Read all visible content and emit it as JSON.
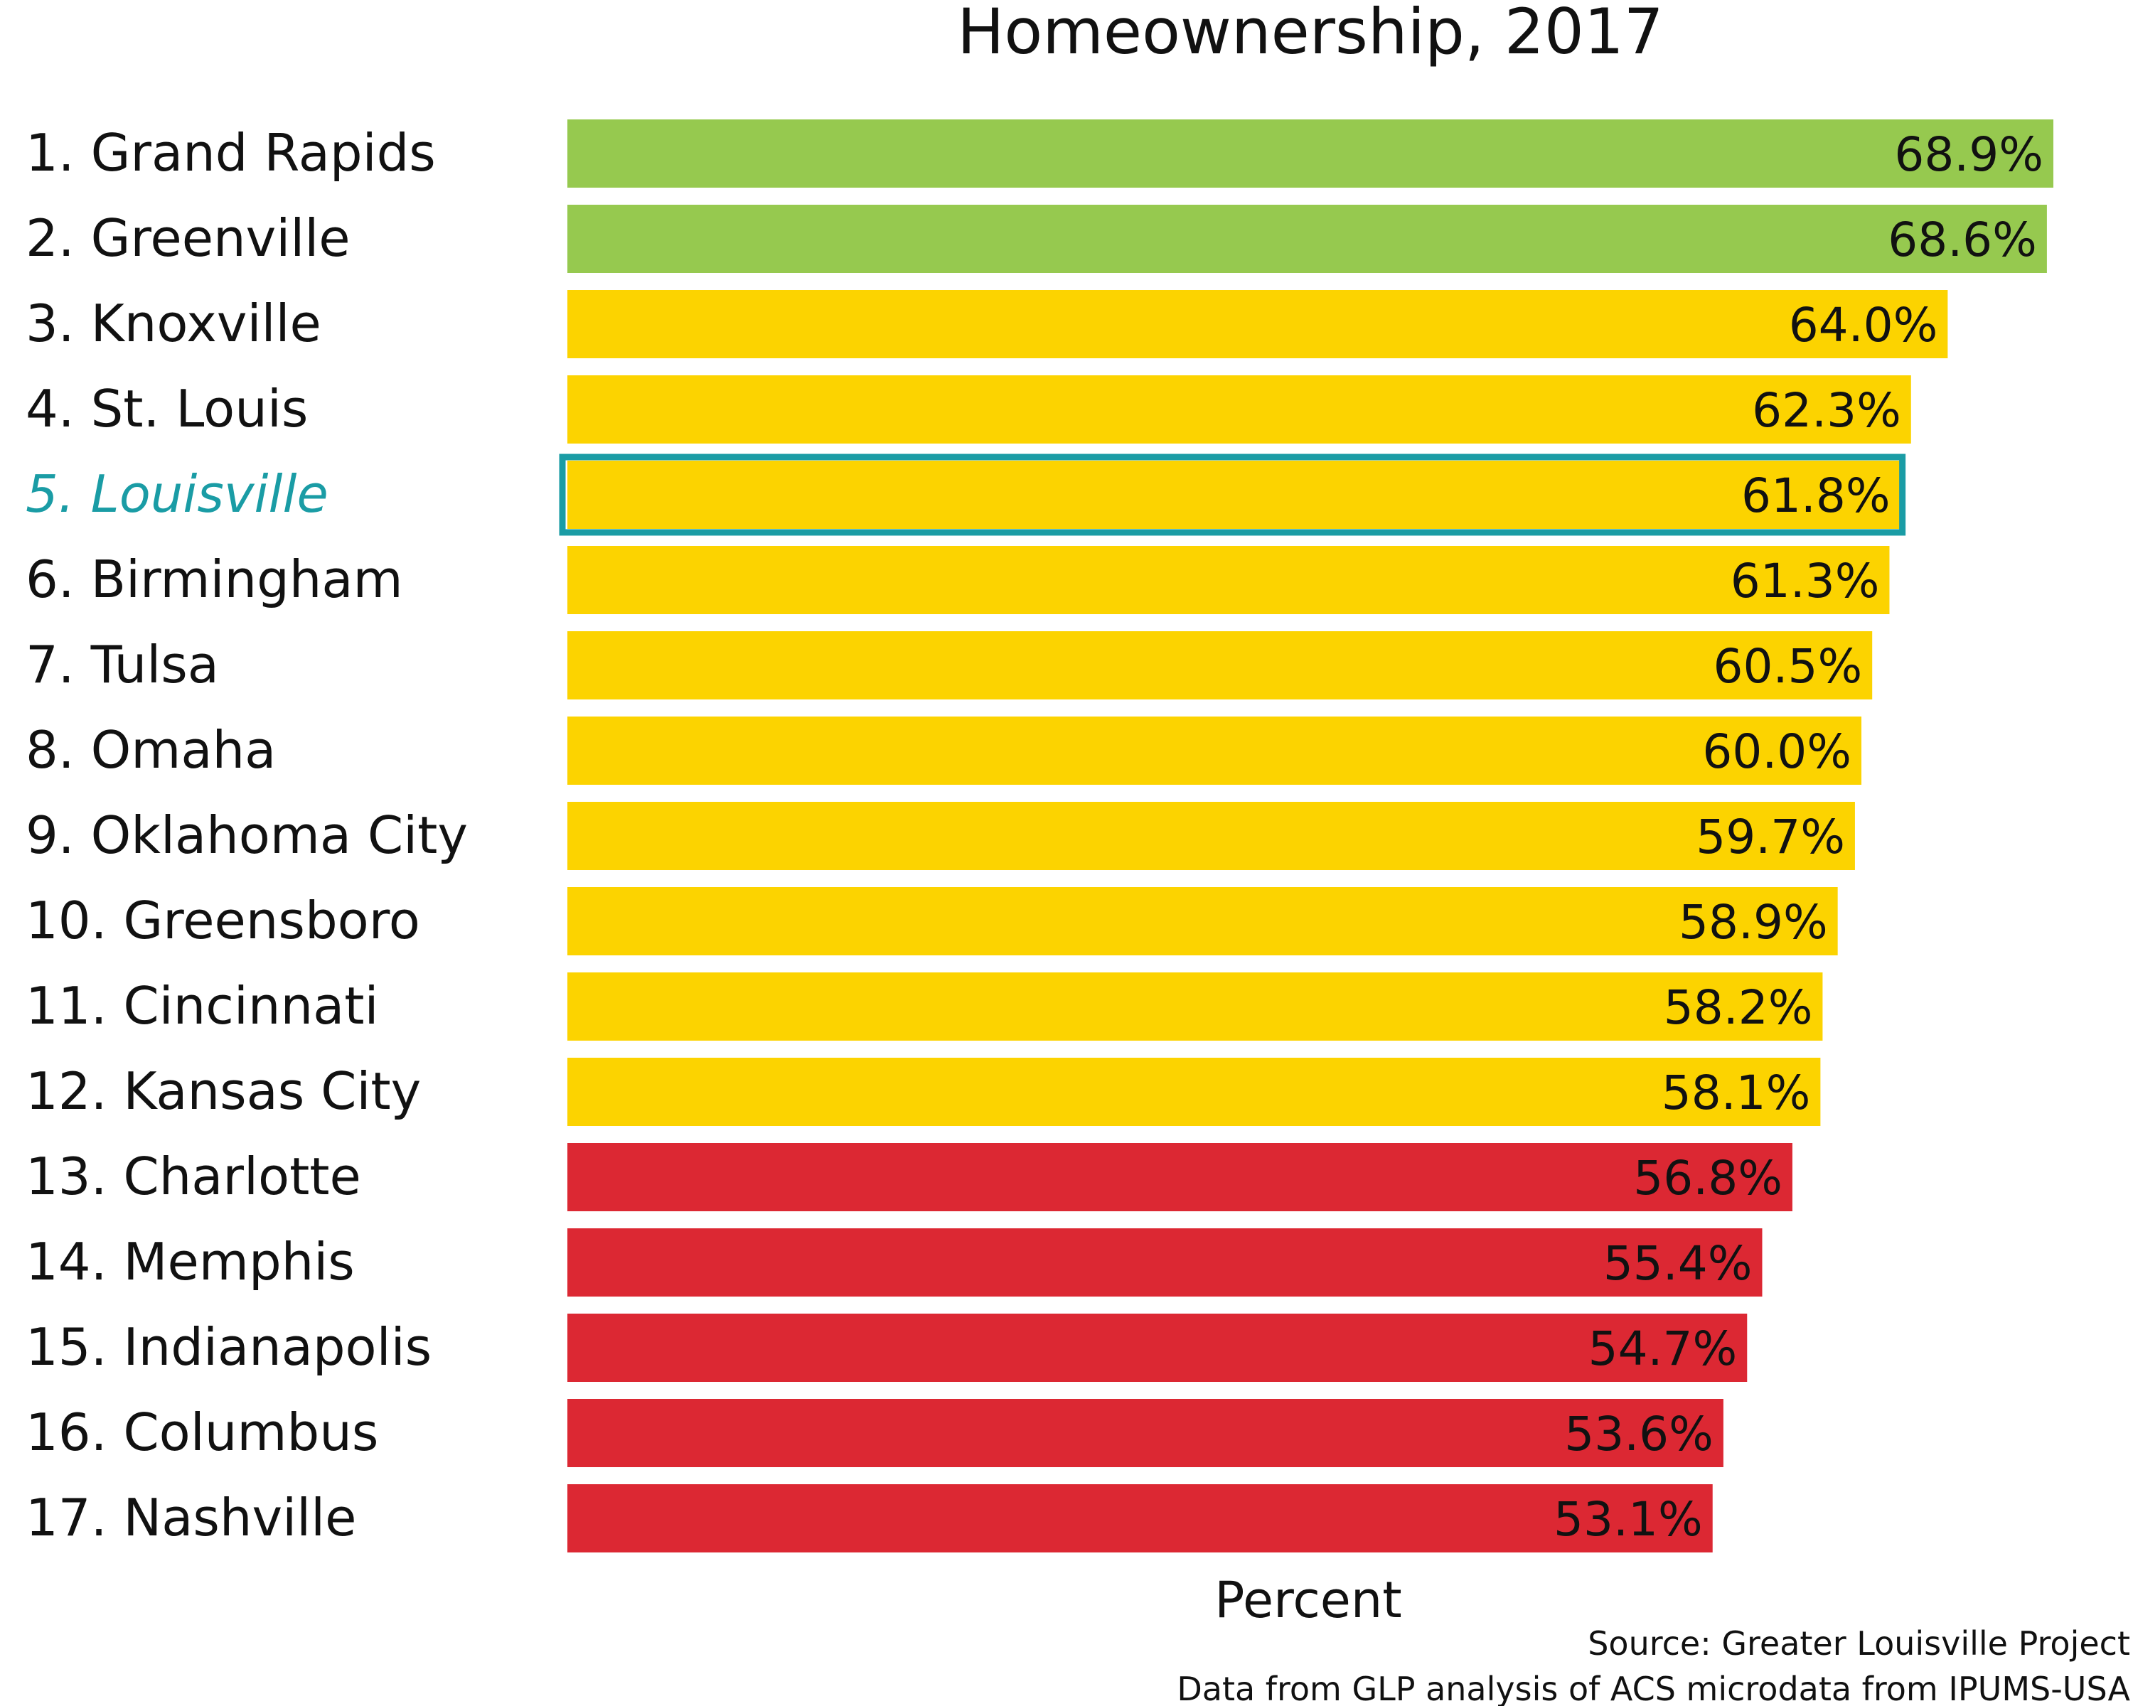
{
  "chart_data": {
    "type": "bar",
    "orientation": "horizontal",
    "title": "Homeownership, 2017",
    "xlabel": "Percent",
    "ylabel": "",
    "xlim": [
      0,
      68.9
    ],
    "grid": false,
    "legend": "none",
    "categories": [
      "1. Grand Rapids",
      "2. Greenville",
      "3. Knoxville",
      "4. St. Louis",
      "5. Louisville",
      "6. Birmingham",
      "7. Tulsa",
      "8. Omaha",
      "9. Oklahoma City",
      "10. Greensboro",
      "11. Cincinnati",
      "12. Kansas City",
      "13. Charlotte",
      "14. Memphis",
      "15. Indianapolis",
      "16. Columbus",
      "17. Nashville"
    ],
    "values": [
      68.9,
      68.6,
      64.0,
      62.3,
      61.8,
      61.3,
      60.5,
      60.0,
      59.7,
      58.9,
      58.2,
      58.1,
      56.8,
      55.4,
      54.7,
      53.6,
      53.1
    ],
    "value_labels": [
      "68.9%",
      "68.6%",
      "64.0%",
      "62.3%",
      "61.8%",
      "61.3%",
      "60.5%",
      "60.0%",
      "59.7%",
      "58.9%",
      "58.2%",
      "58.1%",
      "56.8%",
      "55.4%",
      "54.7%",
      "53.6%",
      "53.1%"
    ],
    "tiers": [
      "top",
      "top",
      "middle",
      "middle",
      "middle",
      "middle",
      "middle",
      "middle",
      "middle",
      "middle",
      "middle",
      "middle",
      "bottom",
      "bottom",
      "bottom",
      "bottom",
      "bottom"
    ],
    "highlight_index": 4,
    "colors": {
      "top": "#96c94f",
      "middle": "#fcd300",
      "bottom": "#dc2833",
      "highlight": "#1a9ca5",
      "text": "#111111"
    }
  },
  "footer": {
    "source": "Source: Greater Louisville Project",
    "note": "Data from GLP analysis of ACS microdata from IPUMS-USA"
  }
}
